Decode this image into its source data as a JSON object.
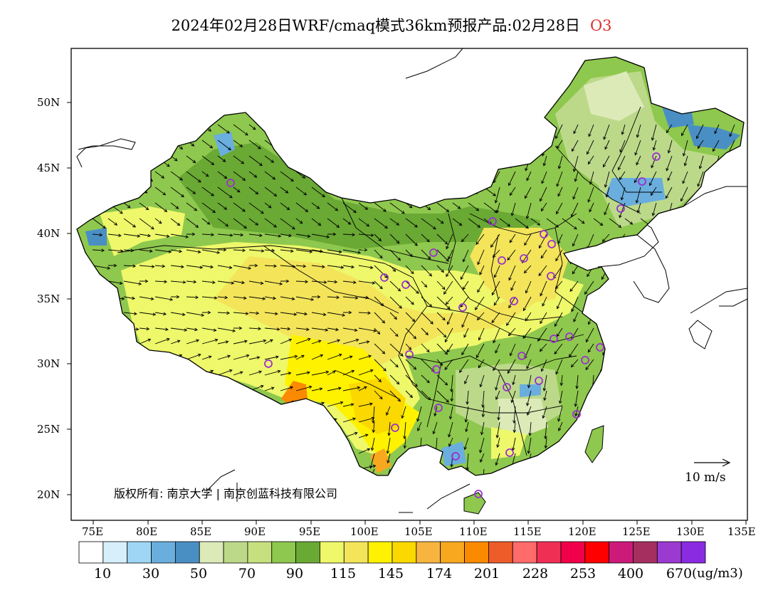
{
  "title": {
    "main": "2024年02月28日WRF/cmaq模式36km预报产品:02月28日",
    "species": "O3"
  },
  "axes": {
    "lat_labels": [
      "50N",
      "45N",
      "40N",
      "35N",
      "30N",
      "25N",
      "20N"
    ],
    "lon_labels": [
      "75E",
      "80E",
      "85E",
      "90E",
      "95E",
      "100E",
      "105E",
      "110E",
      "115E",
      "120E",
      "125E",
      "130E",
      "135E"
    ]
  },
  "copyright": "版权所有: 南京大学 | 南京创蓝科技有限公司",
  "wind_reference": {
    "label": "10 m/s"
  },
  "legend": {
    "unit": "(ug/m3)",
    "tick_labels": [
      "10",
      "30",
      "50",
      "70",
      "90",
      "115",
      "145",
      "174",
      "201",
      "228",
      "253",
      "400",
      "670"
    ],
    "colors": [
      "#ffffff",
      "#d6effb",
      "#9fd6f5",
      "#6aaede",
      "#4a8fc4",
      "#dceab8",
      "#bcd98a",
      "#c7e07f",
      "#8ec84e",
      "#69a934",
      "#eef86a",
      "#f3e45a",
      "#fff200",
      "#fad800",
      "#f7b540",
      "#f7a81e",
      "#fb8a00",
      "#ee5c2a",
      "#ff6a6a",
      "#f02f55",
      "#f0004a",
      "#ff0000",
      "#cc1a7a",
      "#a53060",
      "#9b3ad0",
      "#8a2be2"
    ]
  },
  "map": {
    "colors": {
      "green_dark": "#69a934",
      "green_mid": "#8ec84e",
      "green_light": "#bcd98a",
      "green_pale": "#dceab8",
      "yellow_light": "#eef86a",
      "yellow": "#f3e45a",
      "yellow_deep": "#fff200",
      "gold": "#fad800",
      "orange": "#f7a81e",
      "orange_deep": "#fb8a00",
      "blue": "#4a8fc4",
      "blue_light": "#6aaede",
      "marker": "#9b30d0"
    }
  }
}
